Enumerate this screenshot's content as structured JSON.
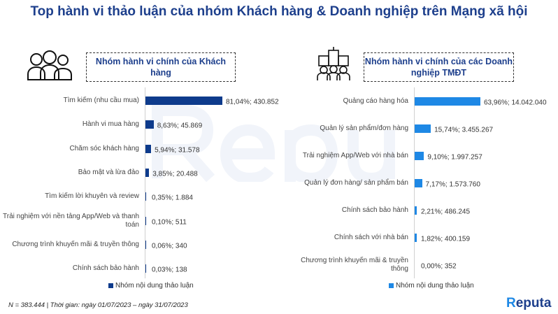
{
  "title": "Top hành vi thảo luận của nhóm Khách hàng & Doanh nghiệp trên Mạng xã hội",
  "watermark": "Reputa",
  "footer": "N = 383.444 | Thời gian: ngày 01/07/2023 – ngày 31/07/2023",
  "logo": {
    "text": "Reputa",
    "first": "R",
    "rest": "eputa"
  },
  "chart_data": [
    {
      "type": "bar",
      "orientation": "horizontal",
      "title": "Nhóm hành vi chính của Khách hàng",
      "color": "#0e3b8c",
      "legend": "Nhóm nội dung thảo luận",
      "legend_position": "bottom",
      "categories": [
        "Tìm kiếm (nhu cầu mua)",
        "Hành vi mua hàng",
        "Chăm sóc khách hàng",
        "Bảo mật và lừa đảo",
        "Tìm kiếm lời khuyên và review",
        "Trải nghiệm với nền tảng App/Web và thanh toán",
        "Chương trình khuyến mãi & truyền thông",
        "Chính sách bảo hành"
      ],
      "percent": [
        81.04,
        8.63,
        5.94,
        3.85,
        0.35,
        0.1,
        0.06,
        0.03
      ],
      "values": [
        430852,
        45869,
        31578,
        20488,
        1884,
        511,
        340,
        138
      ],
      "labels": [
        "81,04%;  430.852",
        "8,63%;  45.869",
        "5,94%;  31.578",
        "3,85%;  20.488",
        "0,35%;  1.884",
        "0,10%;  511",
        "0,06%;  340",
        "0,03%;  138"
      ]
    },
    {
      "type": "bar",
      "orientation": "horizontal",
      "title": "Nhóm hành vi chính của các Doanh nghiệp TMĐT",
      "color": "#1e88e5",
      "legend": "Nhóm nội dung thảo luận",
      "legend_position": "bottom",
      "categories": [
        "Quảng cáo hàng hóa",
        "Quản lý sản phẩm/đơn hàng",
        "Trải nghiệm App/Web với nhà bán",
        "Quản lý đơn hàng/ sản phẩm bán",
        "Chính sách bảo hành",
        "Chính sách với nhà bán",
        "Chương trình khuyến mãi & truyền thông"
      ],
      "percent": [
        63.96,
        15.74,
        9.1,
        7.17,
        2.21,
        1.82,
        0.0
      ],
      "values": [
        14042040,
        3455267,
        1997257,
        1573760,
        486245,
        400159,
        352
      ],
      "labels": [
        "63,96%;  14.042.040",
        "15,74%; 3.455.267",
        "9,10%; 1.997.257",
        "7,17%; 1.573.760",
        "2,21%; 486.245",
        "1,82%; 400.159",
        "0,00%; 352"
      ]
    }
  ]
}
